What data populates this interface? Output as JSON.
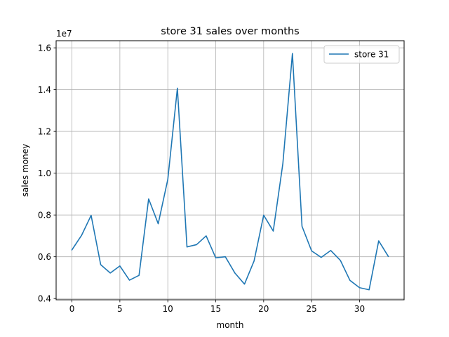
{
  "chart_data": {
    "type": "line",
    "title": "store 31 sales over months",
    "xlabel": "month",
    "ylabel": "sales money",
    "y_offset_label": "1e7",
    "xlim": [
      -1.65,
      34.65
    ],
    "ylim": [
      3.94,
      16.34
    ],
    "xticks": [
      0,
      5,
      10,
      15,
      20,
      25,
      30
    ],
    "yticks": [
      4,
      6,
      8,
      10,
      12,
      14,
      16
    ],
    "ytick_labels": [
      "0.4",
      "0.6",
      "0.8",
      "1.0",
      "1.2",
      "1.4",
      "1.6"
    ],
    "grid": true,
    "legend_position": "top-right",
    "series": [
      {
        "name": "store 31",
        "color": "#1f77b4",
        "x": [
          0,
          1,
          2,
          3,
          4,
          5,
          6,
          7,
          8,
          9,
          10,
          11,
          12,
          13,
          14,
          15,
          16,
          17,
          18,
          19,
          20,
          21,
          22,
          23,
          24,
          25,
          26,
          27,
          28,
          29,
          30,
          31,
          32,
          33
        ],
        "y": [
          6.33,
          7.02,
          7.98,
          5.62,
          5.22,
          5.56,
          4.88,
          5.11,
          8.77,
          7.58,
          9.7,
          14.07,
          6.47,
          6.58,
          7.0,
          5.95,
          6.0,
          5.22,
          4.69,
          5.8,
          7.99,
          7.23,
          10.45,
          15.73,
          7.46,
          6.28,
          5.97,
          6.3,
          5.83,
          4.87,
          4.52,
          4.42,
          6.76,
          6.02
        ]
      }
    ]
  }
}
